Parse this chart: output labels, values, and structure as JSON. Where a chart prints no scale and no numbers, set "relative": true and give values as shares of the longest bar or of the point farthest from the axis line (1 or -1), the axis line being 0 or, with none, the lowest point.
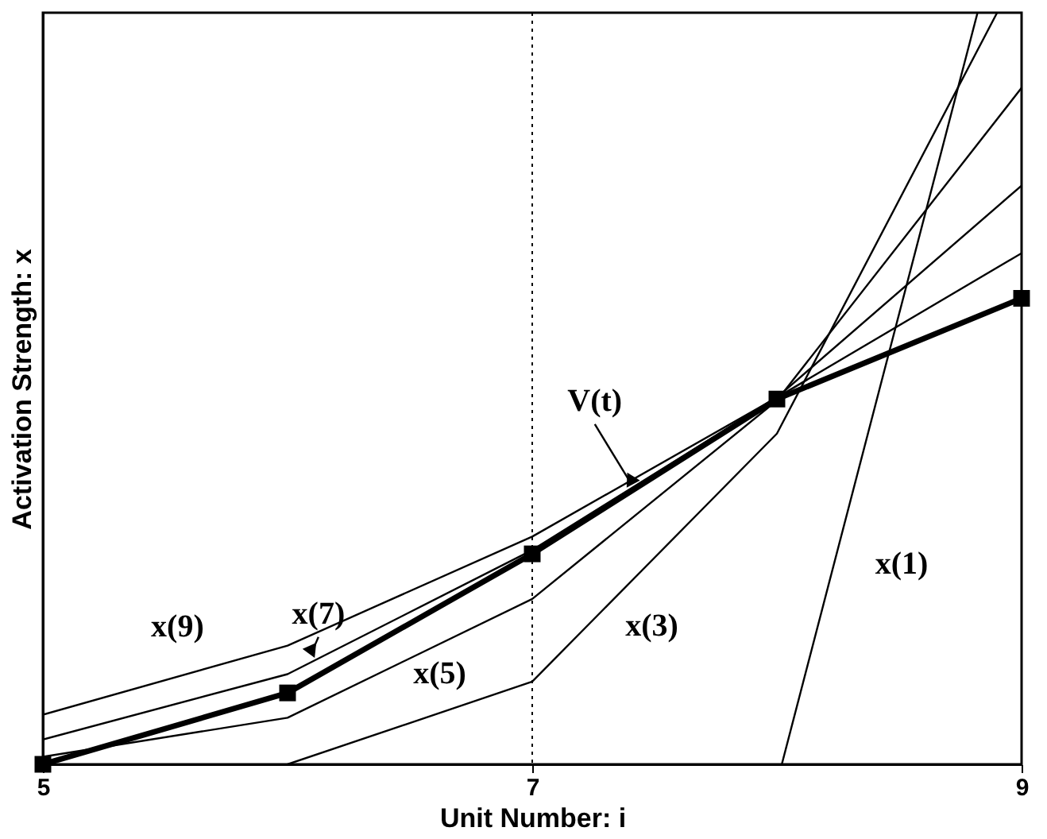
{
  "chart_data": {
    "type": "line",
    "relative": true,
    "xlabel": "Unit Number: i",
    "ylabel": "Activation Strength: x",
    "xlim": [
      5,
      9
    ],
    "xticks": [
      5,
      7,
      9
    ],
    "grid": false,
    "line_style": "solid",
    "series": [
      {
        "name": "V(t)",
        "color": "#000000",
        "marker": "square",
        "x": [
          5,
          6,
          7,
          8,
          9
        ],
        "values": [
          0.0,
          0.095,
          0.28,
          0.486,
          0.62
        ]
      },
      {
        "name": "x(9)",
        "color": "#000000",
        "x": [
          5,
          6,
          7,
          8,
          9
        ],
        "values": [
          0.066,
          0.158,
          0.303,
          0.488,
          0.68
        ]
      },
      {
        "name": "x(7)",
        "color": "#000000",
        "x": [
          5,
          6,
          7,
          8,
          9
        ],
        "values": [
          0.033,
          0.12,
          0.285,
          0.488,
          0.77
        ]
      },
      {
        "name": "x(5)",
        "color": "#000000",
        "x": [
          5,
          6,
          7,
          8,
          9
        ],
        "values": [
          0.01,
          0.062,
          0.22,
          0.484,
          0.9
        ]
      },
      {
        "name": "x(3)",
        "color": "#000000",
        "x": [
          6,
          7,
          8,
          8.9
        ],
        "values": [
          0.0,
          0.11,
          0.44,
          1.0
        ]
      },
      {
        "name": "x(1)",
        "color": "#000000",
        "x": [
          8.02,
          8.82
        ],
        "values": [
          0.0,
          1.0
        ]
      }
    ],
    "ref_lines": [
      {
        "axis": "x",
        "value": 7,
        "line_style": "dotted",
        "color": "#000000"
      }
    ]
  }
}
